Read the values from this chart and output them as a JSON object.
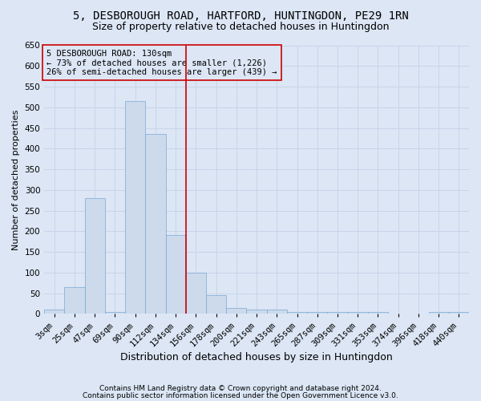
{
  "title": "5, DESBOROUGH ROAD, HARTFORD, HUNTINGDON, PE29 1RN",
  "subtitle": "Size of property relative to detached houses in Huntingdon",
  "xlabel": "Distribution of detached houses by size in Huntingdon",
  "ylabel": "Number of detached properties",
  "footer1": "Contains HM Land Registry data © Crown copyright and database right 2024.",
  "footer2": "Contains public sector information licensed under the Open Government Licence v3.0.",
  "annotation_line1": "5 DESBOROUGH ROAD: 130sqm",
  "annotation_line2": "← 73% of detached houses are smaller (1,226)",
  "annotation_line3": "26% of semi-detached houses are larger (439) →",
  "bar_color": "#ccdaec",
  "bar_edge_color": "#7aa8d2",
  "grid_color": "#c8d4e8",
  "background_color": "#dce6f5",
  "vline_color": "#cc0000",
  "annotation_box_color": "#cc0000",
  "categories": [
    "3sqm",
    "25sqm",
    "47sqm",
    "69sqm",
    "90sqm",
    "112sqm",
    "134sqm",
    "156sqm",
    "178sqm",
    "200sqm",
    "221sqm",
    "243sqm",
    "265sqm",
    "287sqm",
    "309sqm",
    "331sqm",
    "353sqm",
    "374sqm",
    "396sqm",
    "418sqm",
    "440sqm"
  ],
  "values": [
    10,
    65,
    280,
    5,
    515,
    435,
    190,
    100,
    45,
    15,
    10,
    10,
    5,
    5,
    5,
    4,
    4,
    0,
    0,
    4,
    4
  ],
  "ylim": [
    0,
    650
  ],
  "yticks": [
    0,
    50,
    100,
    150,
    200,
    250,
    300,
    350,
    400,
    450,
    500,
    550,
    600,
    650
  ],
  "vline_x": 6.5,
  "title_fontsize": 10,
  "subtitle_fontsize": 9,
  "xlabel_fontsize": 9,
  "ylabel_fontsize": 8,
  "tick_fontsize": 7.5,
  "annotation_fontsize": 7.5,
  "footer_fontsize": 6.5
}
